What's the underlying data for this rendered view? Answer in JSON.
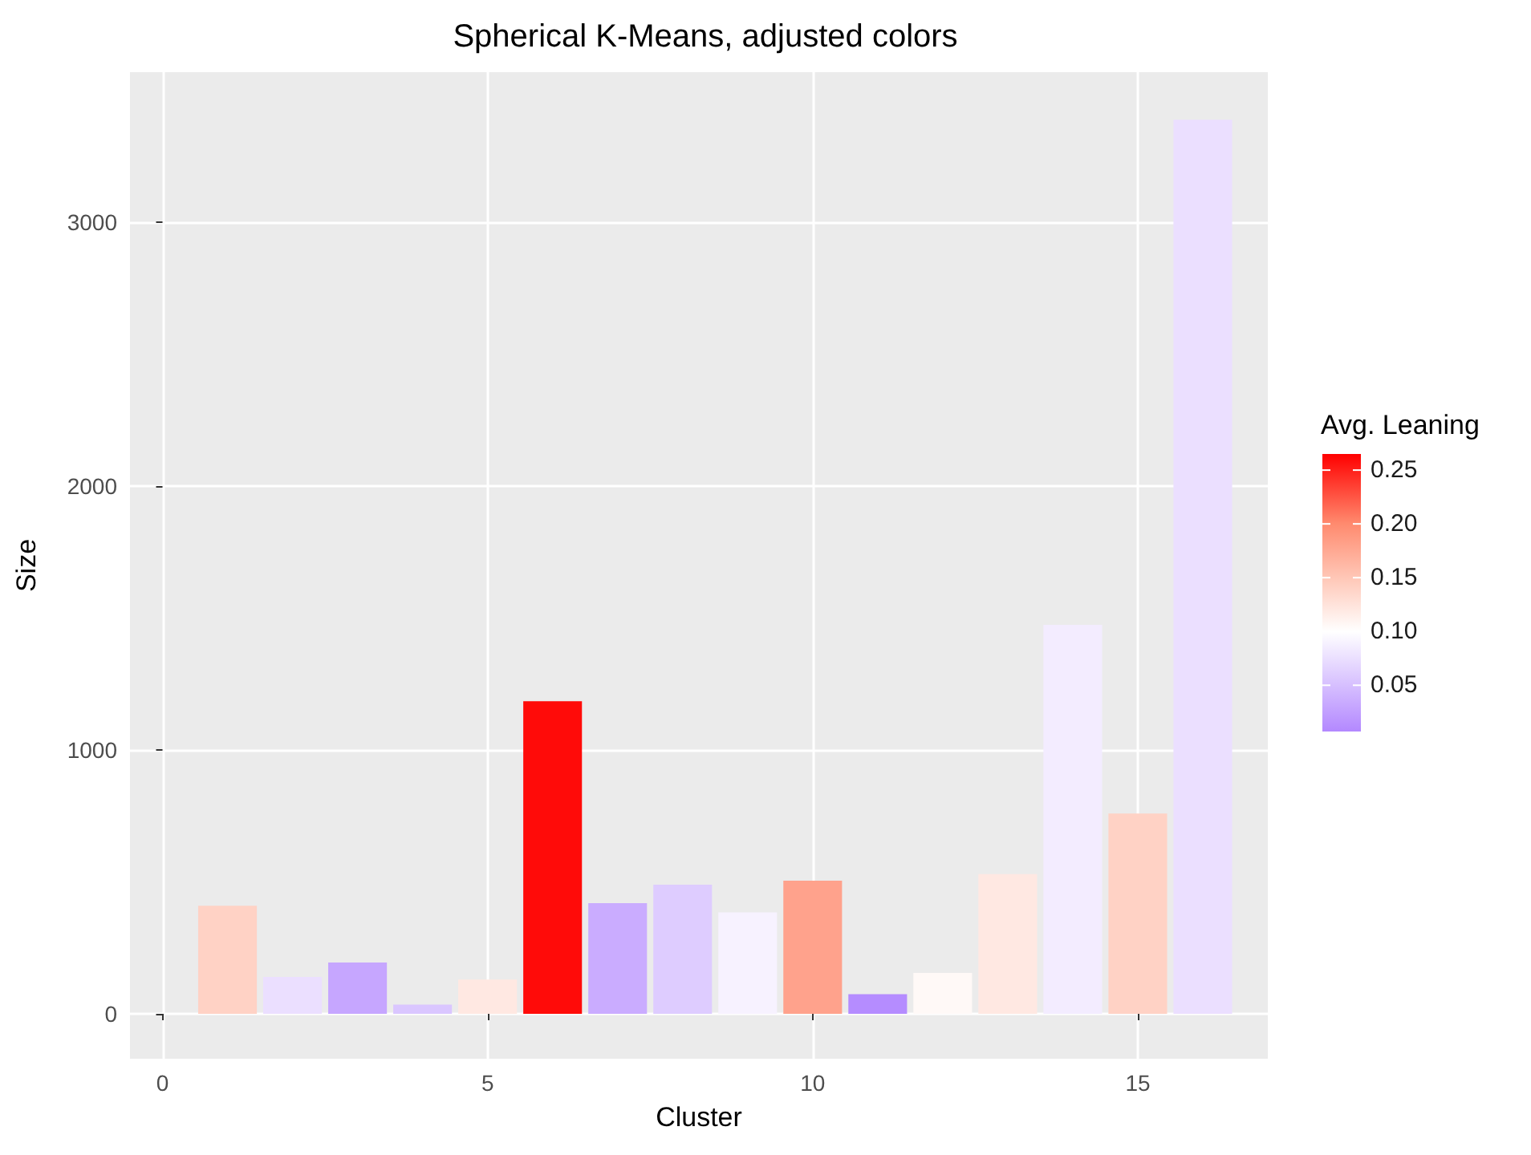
{
  "chart_data": {
    "type": "bar",
    "title": "Spherical K-Means, adjusted colors",
    "xlabel": "Cluster",
    "ylabel": "Size",
    "clabel": "Avg. Leaning",
    "x": [
      1,
      2,
      3,
      4,
      5,
      6,
      7,
      8,
      9,
      10,
      11,
      12,
      13,
      14,
      15,
      16
    ],
    "values": [
      410,
      140,
      195,
      35,
      130,
      1185,
      420,
      490,
      385,
      505,
      75,
      155,
      530,
      1475,
      760,
      3390
    ],
    "cvalues": [
      0.14,
      0.075,
      0.03,
      0.055,
      0.12,
      0.26,
      0.035,
      0.06,
      0.09,
      0.18,
      0.01,
      0.105,
      0.12,
      0.085,
      0.14,
      0.075
    ],
    "clim": [
      0.007,
      0.265
    ],
    "cticks": [
      0.05,
      {
        "value": 0.1,
        "label": "0.10"
      },
      0.15,
      {
        "value": 0.2,
        "label": "0.20"
      },
      0.25
    ],
    "xlim": [
      -0.5,
      17
    ],
    "xticks": [
      0,
      5,
      10,
      15
    ],
    "ylim": [
      -170,
      3570
    ],
    "yticks": [
      0,
      1000,
      2000,
      3000
    ],
    "grid": true
  }
}
